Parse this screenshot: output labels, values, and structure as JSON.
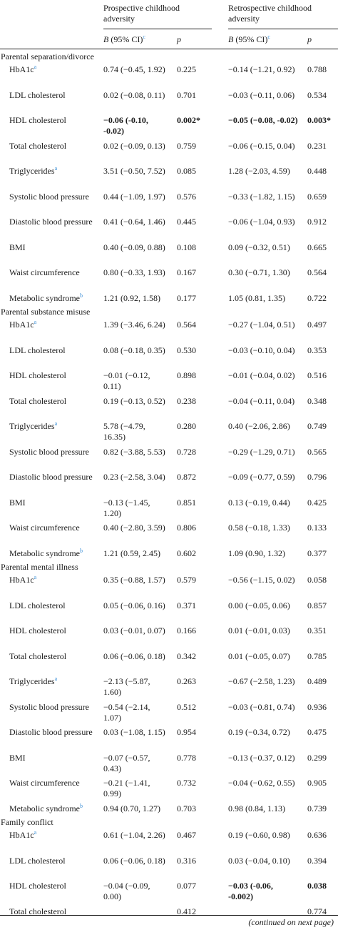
{
  "header": {
    "prospective": "Prospective childhood adversity",
    "retrospective": "Retrospective childhood adversity",
    "b_label": "B",
    "ci_label": " (95% CI)",
    "ci_sup": "c",
    "p_label": "p"
  },
  "sections": [
    {
      "name": "Parental separation/divorce",
      "rows": [
        {
          "label": "HbA1c",
          "sup": "a",
          "pro": "0.74 (−0.45, 1.92)",
          "pro_p": "0.225",
          "ret": "−0.14 (−1.21, 0.92)",
          "ret_p": "0.788"
        },
        {
          "label": "LDL cholesterol",
          "sup": "",
          "pro": "0.02 (−0.08, 0.11)",
          "pro_p": "0.701",
          "ret": "−0.03 (−0.11, 0.06)",
          "ret_p": "0.534"
        },
        {
          "label": "HDL cholesterol",
          "sup": "",
          "pro": "−0.06 (-0.10, -0.02)",
          "pro_p": "0.002*",
          "ret": "−0.05 (−0.08, -0.02)",
          "ret_p": "0.003*",
          "bold": true
        },
        {
          "label": "Total cholesterol",
          "sup": "",
          "pro": "0.02 (−0.09, 0.13)",
          "pro_p": "0.759",
          "ret": "−0.06 (−0.15, 0.04)",
          "ret_p": "0.231"
        },
        {
          "label": "Triglycerides",
          "sup": "a",
          "pro": "3.51 (−0.50, 7.52)",
          "pro_p": "0.085",
          "ret": "1.28 (−2.03, 4.59)",
          "ret_p": "0.448"
        },
        {
          "label": "Systolic blood pressure",
          "sup": "",
          "pro": "0.44 (−1.09, 1.97)",
          "pro_p": "0.576",
          "ret": "−0.33 (−1.82, 1.15)",
          "ret_p": "0.659"
        },
        {
          "label": "Diastolic blood pressure",
          "sup": "",
          "pro": "0.41 (−0.64, 1.46)",
          "pro_p": "0.445",
          "ret": "−0.06 (−1.04, 0.93)",
          "ret_p": "0.912"
        },
        {
          "label": "BMI",
          "sup": "",
          "pro": "0.40 (−0.09, 0.88)",
          "pro_p": "0.108",
          "ret": "0.09 (−0.32, 0.51)",
          "ret_p": "0.665"
        },
        {
          "label": "Waist circumference",
          "sup": "",
          "pro": "0.80 (−0.33, 1.93)",
          "pro_p": "0.167",
          "ret": "0.30 (−0.71, 1.30)",
          "ret_p": "0.564"
        },
        {
          "label": "Metabolic syndrome",
          "sup": "b",
          "pro": "1.21 (0.92, 1.58)",
          "pro_p": "0.177",
          "ret": "1.05 (0.81, 1.35)",
          "ret_p": "0.722"
        }
      ]
    },
    {
      "name": "Parental substance misuse",
      "rows": [
        {
          "label": "HbA1c",
          "sup": "a",
          "pro": "1.39 (−3.46, 6.24)",
          "pro_p": "0.564",
          "ret": "−0.27 (−1.04, 0.51)",
          "ret_p": "0.497"
        },
        {
          "label": "LDL cholesterol",
          "sup": "",
          "pro": "0.08 (−0.18, 0.35)",
          "pro_p": "0.530",
          "ret": "−0.03 (−0.10, 0.04)",
          "ret_p": "0.353"
        },
        {
          "label": "HDL cholesterol",
          "sup": "",
          "pro": "−0.01 (−0.12, 0.11)",
          "pro_p": "0.898",
          "ret": "−0.01 (−0.04, 0.02)",
          "ret_p": "0.516"
        },
        {
          "label": "Total cholesterol",
          "sup": "",
          "pro": "0.19 (−0.13, 0.52)",
          "pro_p": "0.238",
          "ret": "−0.04 (−0.11, 0.04)",
          "ret_p": "0.348"
        },
        {
          "label": "Triglycerides",
          "sup": "a",
          "pro": "5.78 (−4.79, 16.35)",
          "pro_p": "0.280",
          "ret": "0.40 (−2.06, 2.86)",
          "ret_p": "0.749"
        },
        {
          "label": "Systolic blood pressure",
          "sup": "",
          "pro": "0.82 (−3.88, 5.53)",
          "pro_p": "0.728",
          "ret": "−0.29 (−1.29, 0.71)",
          "ret_p": "0.565"
        },
        {
          "label": "Diastolic blood pressure",
          "sup": "",
          "pro": "0.23 (−2.58, 3.04)",
          "pro_p": "0.872",
          "ret": "−0.09 (−0.77, 0.59)",
          "ret_p": "0.796"
        },
        {
          "label": "BMI",
          "sup": "",
          "pro": "−0.13 (−1.45, 1.20)",
          "pro_p": "0.851",
          "ret": "0.13 (−0.19, 0.44)",
          "ret_p": "0.425"
        },
        {
          "label": "Waist circumference",
          "sup": "",
          "pro": "0.40 (−2.80, 3.59)",
          "pro_p": "0.806",
          "ret": "0.58 (−0.18, 1.33)",
          "ret_p": "0.133"
        },
        {
          "label": "Metabolic syndrome",
          "sup": "b",
          "pro": "1.21 (0.59, 2.45)",
          "pro_p": "0.602",
          "ret": "1.09 (0.90, 1.32)",
          "ret_p": "0.377"
        }
      ]
    },
    {
      "name": "Parental mental illness",
      "rows": [
        {
          "label": "HbA1c",
          "sup": "a",
          "pro": "0.35 (−0.88, 1.57)",
          "pro_p": "0.579",
          "ret": "−0.56 (−1.15, 0.02)",
          "ret_p": "0.058"
        },
        {
          "label": "LDL cholesterol",
          "sup": "",
          "pro": "0.05 (−0.06, 0.16)",
          "pro_p": "0.371",
          "ret": "0.00 (−0.05, 0.06)",
          "ret_p": "0.857"
        },
        {
          "label": "HDL cholesterol",
          "sup": "",
          "pro": "0.03 (−0.01, 0.07)",
          "pro_p": "0.166",
          "ret": "0.01 (−0.01, 0.03)",
          "ret_p": "0.351"
        },
        {
          "label": "Total cholesterol",
          "sup": "",
          "pro": "0.06 (−0.06, 0.18)",
          "pro_p": "0.342",
          "ret": "0.01 (−0.05, 0.07)",
          "ret_p": "0.785"
        },
        {
          "label": "Triglycerides",
          "sup": "a",
          "pro": "−2.13 (−5.87, 1.60)",
          "pro_p": "0.263",
          "ret": "−0.67 (−2.58, 1.23)",
          "ret_p": "0.489"
        },
        {
          "label": "Systolic blood pressure",
          "sup": "",
          "pro": "−0.54 (−2.14, 1.07)",
          "pro_p": "0.512",
          "ret": "−0.03 (−0.81, 0.74)",
          "ret_p": "0.936"
        },
        {
          "label": "Diastolic blood pressure",
          "sup": "",
          "pro": "0.03 (−1.08, 1.15)",
          "pro_p": "0.954",
          "ret": "0.19 (−0.34, 0.72)",
          "ret_p": "0.475"
        },
        {
          "label": "BMI",
          "sup": "",
          "pro": "−0.07 (−0.57, 0.43)",
          "pro_p": "0.778",
          "ret": "−0.13 (−0.37, 0.12)",
          "ret_p": "0.299"
        },
        {
          "label": "Waist circumference",
          "sup": "",
          "pro": "−0.21 (−1.41, 0.99)",
          "pro_p": "0.732",
          "ret": "−0.04 (−0.62, 0.55)",
          "ret_p": "0.905"
        },
        {
          "label": "Metabolic syndrome",
          "sup": "b",
          "pro": "0.94 (0.70, 1.27)",
          "pro_p": "0.703",
          "ret": "0.98 (0.84, 1.13)",
          "ret_p": "0.739"
        }
      ]
    },
    {
      "name": "Family conflict",
      "rows": [
        {
          "label": "HbA1c",
          "sup": "a",
          "pro": "0.61 (−1.04, 2.26)",
          "pro_p": "0.467",
          "ret": "0.19 (−0.60, 0.98)",
          "ret_p": "0.636"
        },
        {
          "label": "LDL cholesterol",
          "sup": "",
          "pro": "0.06 (−0.06, 0.18)",
          "pro_p": "0.316",
          "ret": "0.03 (−0.04, 0.10)",
          "ret_p": "0.394"
        },
        {
          "label": "HDL cholesterol",
          "sup": "",
          "pro": "−0.04 (−0.09, 0.00)",
          "pro_p": "0.077",
          "ret": "−0.03 (-0.06, -0.002)",
          "ret_p": "0.038",
          "bold_ret": true
        },
        {
          "label": "Total cholesterol",
          "sup": "",
          "pro": "",
          "pro_p": "0.412",
          "ret": "",
          "ret_p": "0.774"
        }
      ]
    }
  ],
  "footer": {
    "text": "(continued on next page)"
  }
}
